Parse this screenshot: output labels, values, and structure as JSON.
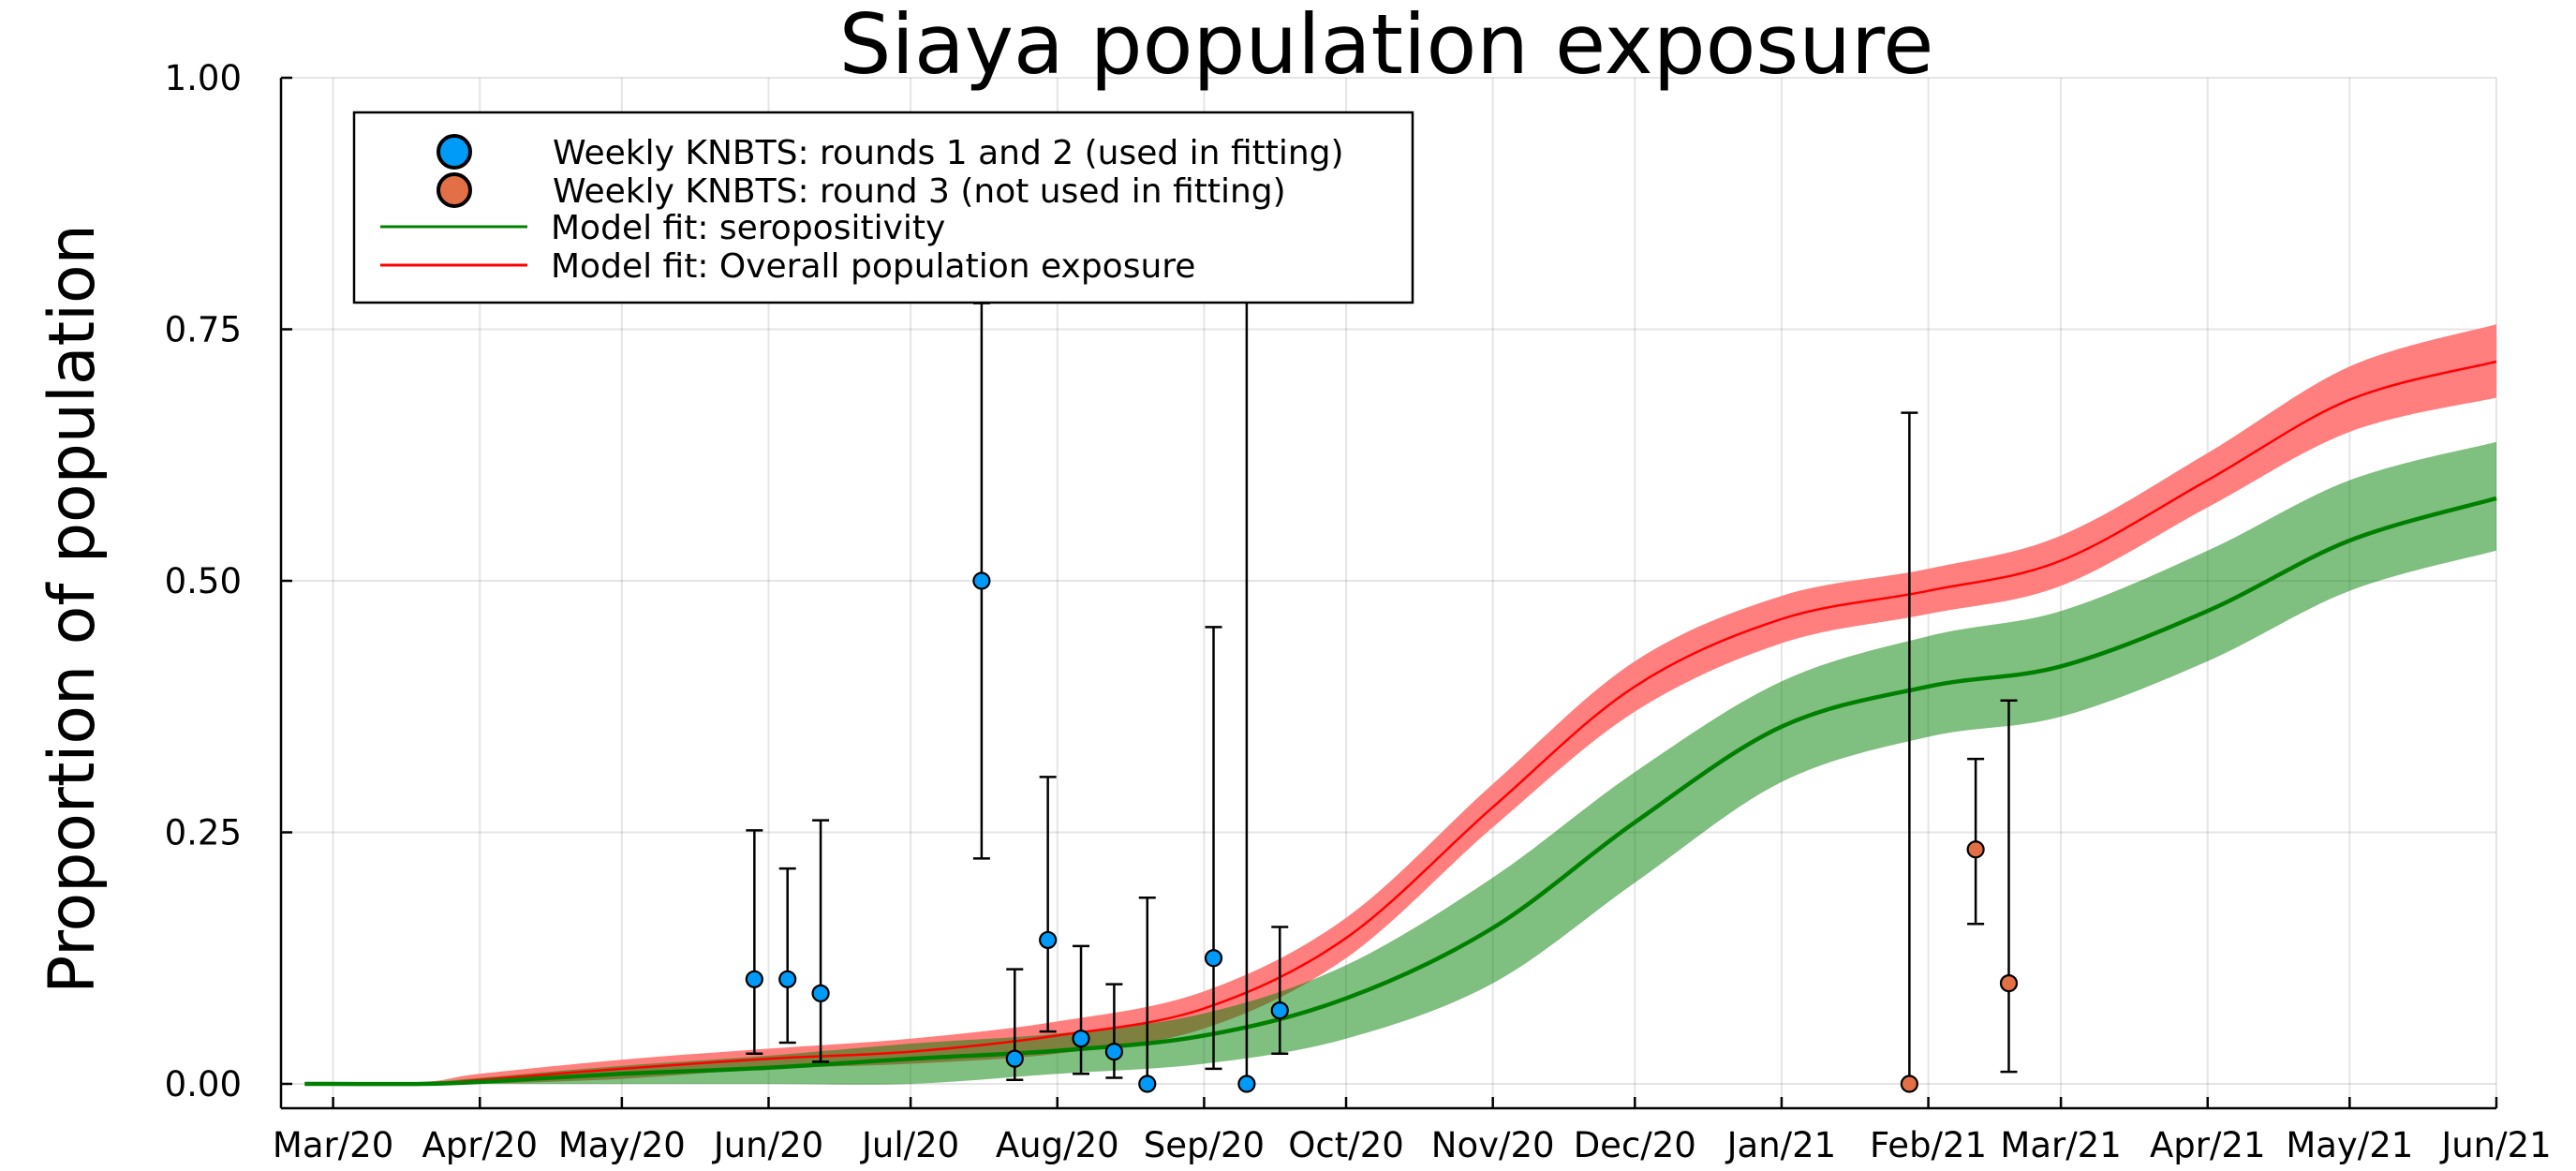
{
  "chart_data": {
    "type": "line",
    "title": "Siaya population exposure",
    "ylabel": "Proportion of population",
    "xlabel": "",
    "x_ticks": [
      "Mar/20",
      "Apr/20",
      "May/20",
      "Jun/20",
      "Jul/20",
      "Aug/20",
      "Sep/20",
      "Oct/20",
      "Nov/20",
      "Dec/20",
      "Jan/21",
      "Feb/21",
      "Mar/21",
      "Apr/21",
      "May/21",
      "Jun/21"
    ],
    "y_ticks": [
      "0.00",
      "0.25",
      "0.50",
      "0.75",
      "1.00"
    ],
    "ylim": [
      0,
      1
    ],
    "xlim": [
      "2020-02-19",
      "2021-06-01"
    ],
    "grid": true,
    "legend_position": "top-left",
    "colors": {
      "round12": "#009af9",
      "round3": "#e26f46",
      "seropositivity": "#008000",
      "exposure": "#ff0000",
      "seropositivity_band": "#80bf80",
      "exposure_band": "#ff7f7f"
    },
    "series": [
      {
        "name": "Weekly KNBTS: rounds 1 and 2 (used in fitting)",
        "kind": "scatter-errorbar",
        "points": [
          {
            "x": "2020-05-29",
            "y": 0.104,
            "lo": 0.03,
            "hi": 0.252
          },
          {
            "x": "2020-06-05",
            "y": 0.104,
            "lo": 0.041,
            "hi": 0.214
          },
          {
            "x": "2020-06-12",
            "y": 0.09,
            "lo": 0.022,
            "hi": 0.262
          },
          {
            "x": "2020-07-16",
            "y": 0.5,
            "lo": 0.224,
            "hi": 0.776
          },
          {
            "x": "2020-07-23",
            "y": 0.025,
            "lo": 0.004,
            "hi": 0.114
          },
          {
            "x": "2020-07-30",
            "y": 0.143,
            "lo": 0.052,
            "hi": 0.305
          },
          {
            "x": "2020-08-06",
            "y": 0.045,
            "lo": 0.01,
            "hi": 0.137
          },
          {
            "x": "2020-08-13",
            "y": 0.032,
            "lo": 0.006,
            "hi": 0.099
          },
          {
            "x": "2020-08-20",
            "y": 0.0,
            "lo": 0.0,
            "hi": 0.185
          },
          {
            "x": "2020-09-03",
            "y": 0.125,
            "lo": 0.015,
            "hi": 0.454
          },
          {
            "x": "2020-09-10",
            "y": 0.0,
            "lo": 0.0,
            "hi": 0.78
          },
          {
            "x": "2020-09-17",
            "y": 0.073,
            "lo": 0.03,
            "hi": 0.156
          }
        ]
      },
      {
        "name": "Weekly KNBTS: round 3 (not used in fitting)",
        "kind": "scatter-errorbar",
        "points": [
          {
            "x": "2021-01-28",
            "y": 0.0,
            "lo": 0.0,
            "hi": 0.667
          },
          {
            "x": "2021-02-11",
            "y": 0.233,
            "lo": 0.159,
            "hi": 0.323
          },
          {
            "x": "2021-02-18",
            "y": 0.1,
            "lo": 0.012,
            "hi": 0.381
          }
        ]
      },
      {
        "name": "Model fit: seropositivity",
        "kind": "line-band",
        "points": [
          {
            "x": "2020-02-24",
            "y": 0.0,
            "lo": 0.0,
            "hi": 0.0
          },
          {
            "x": "2020-03-20",
            "y": 0.0,
            "lo": 0.0,
            "hi": 0.002
          },
          {
            "x": "2020-04-01",
            "y": 0.002,
            "lo": 0.0,
            "hi": 0.006
          },
          {
            "x": "2020-05-01",
            "y": 0.01,
            "lo": 0.0,
            "hi": 0.018
          },
          {
            "x": "2020-06-01",
            "y": 0.016,
            "lo": 0.0,
            "hi": 0.028
          },
          {
            "x": "2020-07-01",
            "y": 0.025,
            "lo": 0.0,
            "hi": 0.04
          },
          {
            "x": "2020-08-01",
            "y": 0.033,
            "lo": 0.01,
            "hi": 0.05
          },
          {
            "x": "2020-09-01",
            "y": 0.048,
            "lo": 0.02,
            "hi": 0.07
          },
          {
            "x": "2020-10-01",
            "y": 0.085,
            "lo": 0.045,
            "hi": 0.118
          },
          {
            "x": "2020-11-01",
            "y": 0.155,
            "lo": 0.1,
            "hi": 0.205
          },
          {
            "x": "2020-12-01",
            "y": 0.26,
            "lo": 0.2,
            "hi": 0.31
          },
          {
            "x": "2021-01-01",
            "y": 0.355,
            "lo": 0.3,
            "hi": 0.4
          },
          {
            "x": "2021-02-01",
            "y": 0.395,
            "lo": 0.345,
            "hi": 0.445
          },
          {
            "x": "2021-03-01",
            "y": 0.415,
            "lo": 0.365,
            "hi": 0.47
          },
          {
            "x": "2021-04-01",
            "y": 0.47,
            "lo": 0.42,
            "hi": 0.53
          },
          {
            "x": "2021-05-01",
            "y": 0.54,
            "lo": 0.49,
            "hi": 0.6
          },
          {
            "x": "2021-06-01",
            "y": 0.582,
            "lo": 0.53,
            "hi": 0.638
          }
        ]
      },
      {
        "name": "Model fit: Overall population exposure",
        "kind": "line-band",
        "points": [
          {
            "x": "2020-02-24",
            "y": 0.0,
            "lo": 0.0,
            "hi": 0.0
          },
          {
            "x": "2020-03-20",
            "y": 0.0,
            "lo": 0.0,
            "hi": 0.002
          },
          {
            "x": "2020-04-01",
            "y": 0.004,
            "lo": 0.0,
            "hi": 0.01
          },
          {
            "x": "2020-05-01",
            "y": 0.015,
            "lo": 0.005,
            "hi": 0.024
          },
          {
            "x": "2020-06-01",
            "y": 0.025,
            "lo": 0.015,
            "hi": 0.035
          },
          {
            "x": "2020-07-01",
            "y": 0.032,
            "lo": 0.02,
            "hi": 0.045
          },
          {
            "x": "2020-08-01",
            "y": 0.048,
            "lo": 0.03,
            "hi": 0.062
          },
          {
            "x": "2020-09-01",
            "y": 0.075,
            "lo": 0.055,
            "hi": 0.092
          },
          {
            "x": "2020-10-01",
            "y": 0.145,
            "lo": 0.125,
            "hi": 0.165
          },
          {
            "x": "2020-11-01",
            "y": 0.275,
            "lo": 0.255,
            "hi": 0.298
          },
          {
            "x": "2020-12-01",
            "y": 0.395,
            "lo": 0.37,
            "hi": 0.42
          },
          {
            "x": "2021-01-01",
            "y": 0.462,
            "lo": 0.438,
            "hi": 0.485
          },
          {
            "x": "2021-02-01",
            "y": 0.49,
            "lo": 0.467,
            "hi": 0.512
          },
          {
            "x": "2021-03-01",
            "y": 0.52,
            "lo": 0.495,
            "hi": 0.545
          },
          {
            "x": "2021-04-01",
            "y": 0.6,
            "lo": 0.573,
            "hi": 0.627
          },
          {
            "x": "2021-05-01",
            "y": 0.68,
            "lo": 0.648,
            "hi": 0.713
          },
          {
            "x": "2021-06-01",
            "y": 0.718,
            "lo": 0.682,
            "hi": 0.755
          }
        ]
      }
    ]
  }
}
